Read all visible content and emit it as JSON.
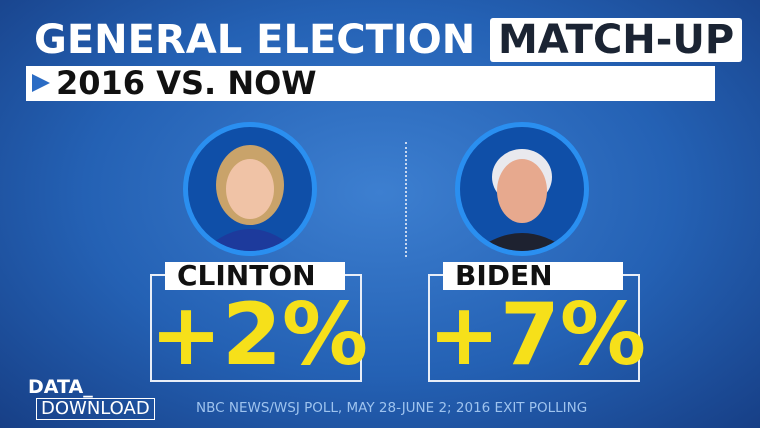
{
  "header": {
    "title": "GENERAL ELECTION",
    "title_highlight": "MATCH-UP",
    "subtitle": "2016 VS. NOW"
  },
  "candidates": [
    {
      "name": "CLINTON",
      "margin": "+2%"
    },
    {
      "name": "BIDEN",
      "margin": "+7%"
    }
  ],
  "footer": {
    "brand_line1": "DATA_",
    "brand_line2": "DOWNLOAD",
    "source": "NBC NEWS/WSJ POLL, MAY 28-JUNE 2; 2016 EXIT POLLING"
  }
}
